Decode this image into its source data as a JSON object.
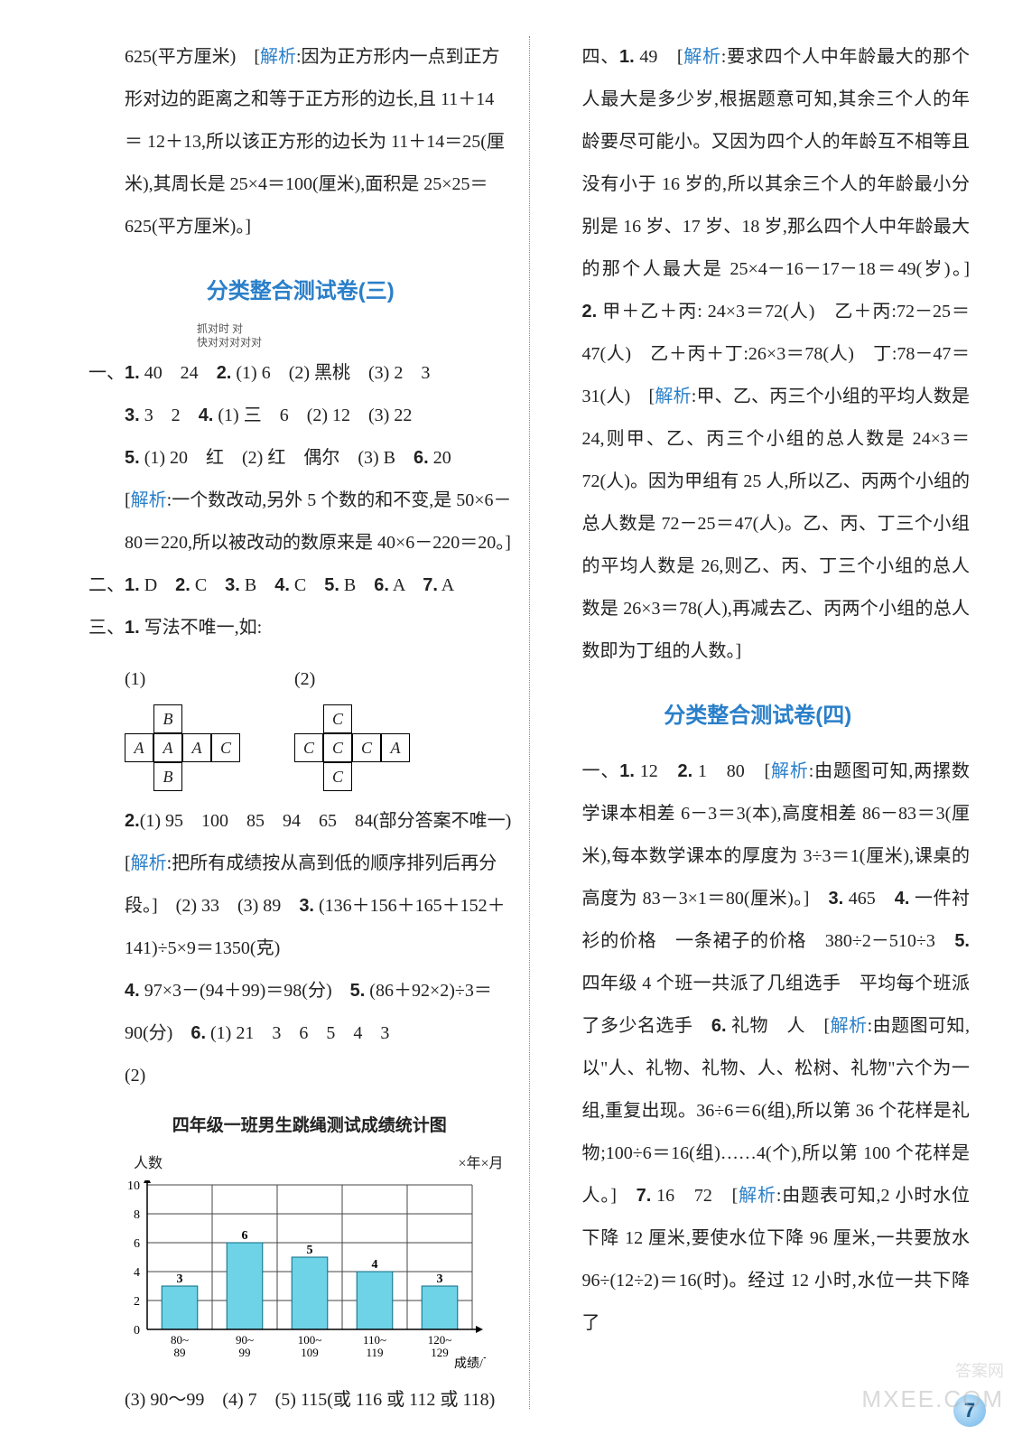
{
  "left": {
    "top_para": "625(平方厘米)　[<jiexi>解析</jiexi>:因为正方形内一点到正方形对边的距离之和等于正方形的边长,且 11＋14 ＝ 12＋13,所以该正方形的边长为 11＋14＝25(厘米),其周长是 25×4＝100(厘米),面积是 25×25＝625(平方厘米)。]",
    "title3": "分类整合测试卷(三)",
    "q1_line": "一、<b>1.</b> 40　24　<b>2.</b> (1) 6　(2) 黑桃　(3) 2　3",
    "q1_l2": "<b>3.</b> 3　2　<b>4.</b> (1) 三　6　(2) 12　(3) 22",
    "q1_l3": "<b>5.</b> (1) 20　红　(2) 红　偶尔　(3) B　<b>6.</b> 20",
    "q1_l4": "[<jiexi>解析</jiexi>:一个数改动,另外 5 个数的和不变,是 50×6－80＝220,所以被改动的数原来是 40×6－220＝20。]",
    "q2": "二、<b>1.</b> D　<b>2.</b> C　<b>3.</b> B　<b>4.</b> C　<b>5.</b> B　<b>6.</b> A　<b>7.</b> A",
    "q3": "三、<b>1.</b> 写法不唯一,如:",
    "cube_labels": {
      "(1)": "(1)",
      "(2)": "(2)"
    },
    "cube1": [
      [
        "",
        "B",
        "",
        ""
      ],
      [
        "A",
        "A",
        "A",
        "C"
      ],
      [
        "",
        "B",
        "",
        ""
      ]
    ],
    "cube2": [
      [
        "",
        "C",
        "",
        ""
      ],
      [
        "C",
        "C",
        "C",
        "A"
      ],
      [
        "",
        "C",
        "",
        ""
      ]
    ],
    "q3_2": "<b>2.</b>(1) 95　100　85　94　65　84(部分答案不唯一)　[<jiexi>解析</jiexi>:把所有成绩按从高到低的顺序排列后再分段。]　(2) 33　(3) 89　<b>3.</b> (136＋156＋165＋152＋141)÷5×9＝1350(克)",
    "q3_4": "<b>4.</b> 97×3－(94＋99)＝98(分)　<b>5.</b> (86＋92×2)÷3＝90(分)　<b>6.</b> (1) 21　3　6　5　4　3",
    "q3_6_2": "(2)",
    "chart": {
      "title": "四年级一班男生跳绳测试成绩统计图",
      "ylab": "人数",
      "xlab": "成绩/下",
      "date": "×年×月",
      "ymax": 10,
      "ystep": 2,
      "categories": [
        "80~\n89",
        "90~\n99",
        "100~\n109",
        "110~\n119",
        "120~\n129"
      ],
      "values": [
        3,
        6,
        5,
        4,
        3
      ],
      "bar_color": "#6fd3e8",
      "grid_color": "#444",
      "bg": "#ffffff"
    },
    "q3_rest": "(3) 90～99　(4) 7　(5) 115(或 116 或 112 或 118)"
  },
  "right": {
    "four": "四、<b>1.</b> 49　[<jiexi>解析</jiexi>:要求四个人中年龄最大的那个人最大是多少岁,根据题意可知,其余三个人的年龄要尽可能小。又因为四个人的年龄互不相等且没有小于 16 岁的,所以其余三个人的年龄最小分别是 16 岁、17 岁、18 岁,那么四个人中年龄最大的那个人最大是 25×4－16－17－18＝49(岁)。]　<b>2.</b> 甲＋乙＋丙: 24×3＝72(人)　乙＋丙:72－25＝47(人)　乙＋丙＋丁:26×3＝78(人)　丁:78－47＝31(人)　[<jiexi>解析</jiexi>:甲、乙、丙三个小组的平均人数是 24,则甲、乙、丙三个小组的总人数是 24×3＝72(人)。因为甲组有 25 人,所以乙、丙两个小组的总人数是 72－25＝47(人)。乙、丙、丁三个小组的平均人数是 26,则乙、丙、丁三个小组的总人数是 26×3＝78(人),再减去乙、丙两个小组的总人数即为丁组的人数。]",
    "title4": "分类整合测试卷(四)",
    "one": "一、<b>1.</b> 12　<b>2.</b> 1　80　[<jiexi>解析</jiexi>:由题图可知,两摞数学课本相差 6－3＝3(本),高度相差 86－83＝3(厘米),每本数学课本的厚度为 3÷3＝1(厘米),课桌的高度为 83－3×1＝80(厘米)。]　<b>3.</b> 465　<b>4.</b> 一件衬衫的价格　一条裙子的价格　380÷2－510÷3　<b>5.</b> 四年级 4 个班一共派了几组选手　平均每个班派了多少名选手　<b>6.</b> 礼物　人　[<jiexi>解析</jiexi>:由题图可知,以\"人、礼物、礼物、人、松树、礼物\"六个为一组,重复出现。36÷6＝6(组),所以第 36 个花样是礼物;100÷6＝16(组)……4(个),所以第 100 个花样是人。]　<b>7.</b> 16　72　[<jiexi>解析</jiexi>:由题表可知,2 小时水位下降 12 厘米,要使水位下降 96 厘米,一共要放水 96÷(12÷2)＝16(时)。经过 12 小时,水位一共下降了"
  },
  "pagenum": "7",
  "wm1": "MXEE.COM",
  "wm2": "答案网"
}
